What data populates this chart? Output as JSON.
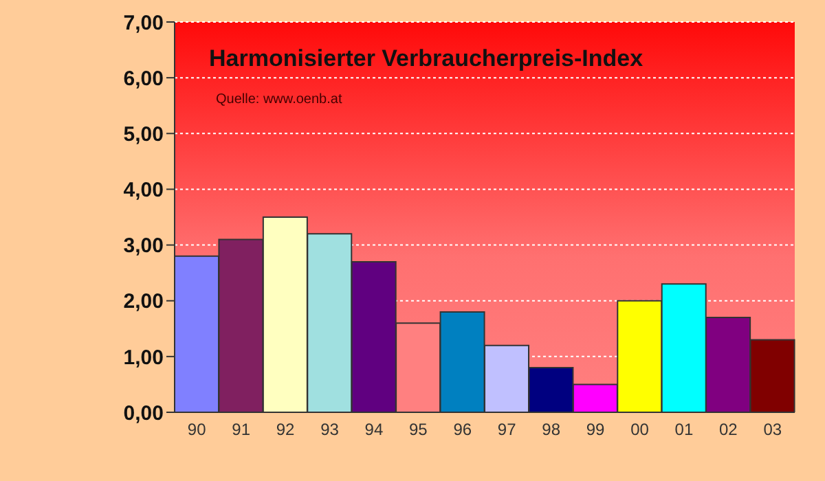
{
  "chart_data": {
    "type": "bar",
    "title": "Harmonisierter Verbraucherpreis-Index",
    "annotations": [
      "Quelle: www.oenb.at"
    ],
    "categories": [
      "90",
      "91",
      "92",
      "93",
      "94",
      "95",
      "96",
      "97",
      "98",
      "99",
      "00",
      "01",
      "02",
      "03"
    ],
    "values": [
      2.8,
      3.1,
      3.5,
      3.2,
      2.7,
      1.6,
      1.8,
      1.2,
      0.8,
      0.5,
      2.0,
      2.3,
      1.7,
      1.3
    ],
    "colors": [
      "#8080ff",
      "#802060",
      "#ffffc0",
      "#a0e0e0",
      "#600080",
      "#ff8080",
      "#0080c0",
      "#c0c0ff",
      "#000080",
      "#ff00ff",
      "#ffff00",
      "#00ffff",
      "#800080",
      "#800000"
    ],
    "ylim": [
      0,
      7
    ],
    "yticks": [
      {
        "value": 0,
        "label": "0,00"
      },
      {
        "value": 1,
        "label": "1,00"
      },
      {
        "value": 2,
        "label": "2,00"
      },
      {
        "value": 3,
        "label": "3,00"
      },
      {
        "value": 4,
        "label": "4,00"
      },
      {
        "value": 5,
        "label": "5,00"
      },
      {
        "value": 6,
        "label": "6,00"
      },
      {
        "value": 7,
        "label": "7,00"
      }
    ],
    "grid": "y"
  }
}
